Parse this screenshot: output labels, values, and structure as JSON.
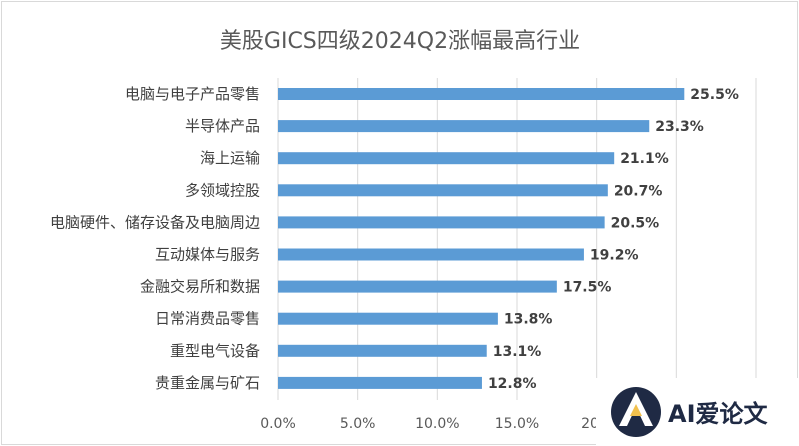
{
  "chart_data": {
    "type": "bar",
    "orientation": "horizontal",
    "title": "美股GICS四级2024Q2涨幅最高行业",
    "categories": [
      "电脑与电子产品零售",
      "半导体产品",
      "海上运输",
      "多领域控股",
      "电脑硬件、储存设备及电脑周边",
      "互动媒体与服务",
      "金融交易所和数据",
      "日常消费品零售",
      "重型电气设备",
      "贵重金属与矿石"
    ],
    "values": [
      25.5,
      23.3,
      21.1,
      20.7,
      20.5,
      19.2,
      17.5,
      13.8,
      13.1,
      12.8
    ],
    "data_labels": [
      "25.5%",
      "23.3%",
      "21.1%",
      "20.7%",
      "20.5%",
      "19.2%",
      "17.5%",
      "13.8%",
      "13.1%",
      "12.8%"
    ],
    "x_ticks": [
      "0.0%",
      "5.0%",
      "10.0%",
      "15.0%",
      "20.0",
      "",
      ""
    ],
    "xlim": [
      0,
      30
    ],
    "grid": "vertical",
    "bar_color": "#5b9bd5"
  },
  "watermark": {
    "text": "AI爱论文",
    "icon": "ai-logo-icon"
  }
}
